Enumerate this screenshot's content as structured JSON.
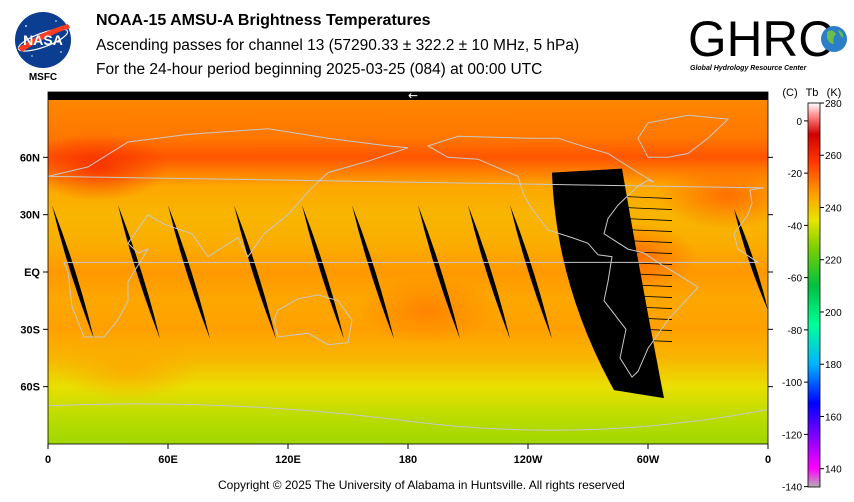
{
  "header": {
    "title": "NOAA-15 AMSU-A Brightness Temperatures",
    "subtitle1": "Ascending passes for channel 13 (57290.33 ± 322.2 ± 10 MHz, 5 hPa)",
    "subtitle2": "For the 24-hour period beginning 2025-03-25 (084) at 00:00 UTC"
  },
  "logos": {
    "nasa_text": "NASA",
    "msfc_text": "MSFC",
    "ghrc_text": "GHRC",
    "ghrc_sub": "Global Hydrology Resource Center"
  },
  "footer": "Copyright © 2025 The University of Alabama in Huntsville.  All rights reserved",
  "chart_data": {
    "type": "heatmap",
    "title": "NOAA-15 AMSU-A Brightness Temperatures",
    "x_ticks": [
      {
        "lon": 0,
        "label": "0"
      },
      {
        "lon": 60,
        "label": "60E"
      },
      {
        "lon": 120,
        "label": "120E"
      },
      {
        "lon": 180,
        "label": "180"
      },
      {
        "lon": 240,
        "label": "120W"
      },
      {
        "lon": 300,
        "label": "60W"
      },
      {
        "lon": 360,
        "label": "0"
      }
    ],
    "y_ticks": [
      {
        "lat": 60,
        "label": "60N"
      },
      {
        "lat": 30,
        "label": "30N"
      },
      {
        "lat": 0,
        "label": "EQ"
      },
      {
        "lat": -30,
        "label": "30S"
      },
      {
        "lat": -60,
        "label": "60S"
      }
    ],
    "xlim": [
      0,
      360
    ],
    "ylim": [
      -90,
      90
    ],
    "colorbar": {
      "header_c": "(C)",
      "header_tb": "Tb",
      "header_k": "(K)",
      "range_k": [
        133,
        280
      ],
      "k_ticks": [
        280,
        260,
        240,
        220,
        200,
        180,
        160,
        140
      ],
      "c_ticks": [
        0,
        -20,
        -40,
        -60,
        -80,
        -100,
        -120,
        -140
      ],
      "colors": [
        {
          "k": 133,
          "color": "#b3b3b3"
        },
        {
          "k": 140,
          "color": "#ff00ff"
        },
        {
          "k": 150,
          "color": "#9900ff"
        },
        {
          "k": 165,
          "color": "#0000ff"
        },
        {
          "k": 180,
          "color": "#00b4ff"
        },
        {
          "k": 195,
          "color": "#00ff99"
        },
        {
          "k": 210,
          "color": "#00c040"
        },
        {
          "k": 225,
          "color": "#80d000"
        },
        {
          "k": 235,
          "color": "#e6e600"
        },
        {
          "k": 245,
          "color": "#ffa000"
        },
        {
          "k": 258,
          "color": "#ff3300"
        },
        {
          "k": 268,
          "color": "#d00000"
        },
        {
          "k": 275,
          "color": "#ff8888"
        },
        {
          "k": 280,
          "color": "#ffffff"
        }
      ]
    },
    "field_k": {
      "lat_bands": [
        {
          "lat": 90,
          "k": 248
        },
        {
          "lat": 70,
          "k": 250
        },
        {
          "lat": 60,
          "k": 254
        },
        {
          "lat": 45,
          "k": 244
        },
        {
          "lat": 30,
          "k": 242
        },
        {
          "lat": 15,
          "k": 243
        },
        {
          "lat": 0,
          "k": 246
        },
        {
          "lat": -15,
          "k": 244
        },
        {
          "lat": -30,
          "k": 245
        },
        {
          "lat": -45,
          "k": 242
        },
        {
          "lat": -60,
          "k": 236
        },
        {
          "lat": -75,
          "k": 231
        },
        {
          "lat": -90,
          "k": 228
        }
      ],
      "warm_spots": [
        {
          "lon": 25,
          "lat": 55,
          "k": 260
        },
        {
          "lon": 340,
          "lat": 40,
          "k": 252
        },
        {
          "lon": 290,
          "lat": 8,
          "k": 253
        },
        {
          "lon": 190,
          "lat": -20,
          "k": 249
        },
        {
          "lon": 40,
          "lat": -50,
          "k": 244
        }
      ]
    },
    "swath_gaps": [
      {
        "lon_top": 2,
        "lon_bot": 23,
        "lat_top": 35,
        "lat_bot": -35
      },
      {
        "lon_top": 35,
        "lon_bot": 56,
        "lat_top": 35,
        "lat_bot": -35
      },
      {
        "lon_top": 60,
        "lon_bot": 81,
        "lat_top": 35,
        "lat_bot": -35
      },
      {
        "lon_top": 93,
        "lon_bot": 114,
        "lat_top": 35,
        "lat_bot": -35
      },
      {
        "lon_top": 127,
        "lon_bot": 148,
        "lat_top": 35,
        "lat_bot": -35
      },
      {
        "lon_top": 152,
        "lon_bot": 173,
        "lat_top": 35,
        "lat_bot": -35
      },
      {
        "lon_top": 185,
        "lon_bot": 206,
        "lat_top": 35,
        "lat_bot": -35
      },
      {
        "lon_top": 210,
        "lon_bot": 231,
        "lat_top": 35,
        "lat_bot": -35
      },
      {
        "lon_top": 231,
        "lon_bot": 252,
        "lat_top": 35,
        "lat_bot": -35
      },
      {
        "lon_top": 343,
        "lon_bot": 360,
        "lat_top": 33,
        "lat_bot": -20
      }
    ],
    "missing_region": {
      "lon_top_w": 252,
      "lon_top_e": 287,
      "lon_bot_w": 283,
      "lon_bot_e": 308,
      "lat_top": 52,
      "lat_bot": -66
    },
    "marker": "←"
  }
}
